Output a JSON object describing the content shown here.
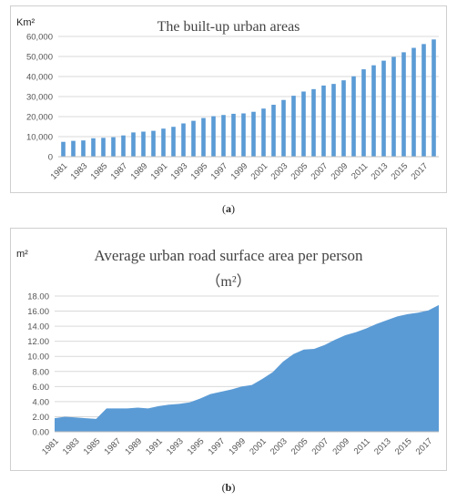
{
  "captions": {
    "a_open": "(",
    "a_letter": "a",
    "a_close": ")",
    "b_open": "(",
    "b_letter": "b",
    "b_close": ")"
  },
  "chart_data": [
    {
      "type": "bar",
      "title": "The built-up urban areas",
      "unit": "Km²",
      "xlabel": "",
      "ylabel": "",
      "ylim": [
        0,
        60000
      ],
      "y_ticks": [
        "0",
        "10,000",
        "20,000",
        "30,000",
        "40,000",
        "50,000",
        "60,000"
      ],
      "grid": true,
      "color": "#5b9bd5",
      "categories": [
        "1981",
        "1982",
        "1983",
        "1984",
        "1985",
        "1986",
        "1987",
        "1988",
        "1989",
        "1990",
        "1991",
        "1992",
        "1993",
        "1994",
        "1995",
        "1996",
        "1997",
        "1998",
        "1999",
        "2000",
        "2001",
        "2002",
        "2003",
        "2004",
        "2005",
        "2006",
        "2007",
        "2008",
        "2009",
        "2010",
        "2011",
        "2012",
        "2013",
        "2014",
        "2015",
        "2016",
        "2017",
        "2018"
      ],
      "x_tick_labels": [
        "1981",
        "1983",
        "1985",
        "1987",
        "1989",
        "1991",
        "1993",
        "1995",
        "1997",
        "1999",
        "2001",
        "2003",
        "2005",
        "2007",
        "2009",
        "2011",
        "2013",
        "2015",
        "2017"
      ],
      "values": [
        7400,
        7900,
        8100,
        9200,
        9400,
        9700,
        10600,
        12100,
        12500,
        12900,
        14000,
        14900,
        16600,
        17900,
        19300,
        20200,
        20800,
        21400,
        21600,
        22400,
        24000,
        25900,
        28300,
        30400,
        32500,
        33700,
        35500,
        36300,
        38100,
        40100,
        43600,
        45600,
        47900,
        49800,
        52100,
        54300,
        56200,
        58500
      ]
    },
    {
      "type": "area",
      "title": "Average urban road surface area per person",
      "subtitle": "（m²）",
      "unit": "m²",
      "xlabel": "",
      "ylabel": "",
      "ylim": [
        0,
        18
      ],
      "y_ticks": [
        "0.00",
        "2.00",
        "4.00",
        "6.00",
        "8.00",
        "10.00",
        "12.00",
        "14.00",
        "16.00",
        "18.00"
      ],
      "grid": true,
      "color": "#5b9bd5",
      "categories": [
        "1981",
        "1982",
        "1983",
        "1984",
        "1985",
        "1986",
        "1987",
        "1988",
        "1989",
        "1990",
        "1991",
        "1992",
        "1993",
        "1994",
        "1995",
        "1996",
        "1997",
        "1998",
        "1999",
        "2000",
        "2001",
        "2002",
        "2003",
        "2004",
        "2005",
        "2006",
        "2007",
        "2008",
        "2009",
        "2010",
        "2011",
        "2012",
        "2013",
        "2014",
        "2015",
        "2016",
        "2017",
        "2018"
      ],
      "x_tick_labels": [
        "1981",
        "1983",
        "1985",
        "1987",
        "1989",
        "1991",
        "1993",
        "1995",
        "1997",
        "1999",
        "2001",
        "2003",
        "2005",
        "2007",
        "2009",
        "2011",
        "2013",
        "2015",
        "2017"
      ],
      "values": [
        1.8,
        2.0,
        1.9,
        1.8,
        1.7,
        3.1,
        3.1,
        3.1,
        3.2,
        3.1,
        3.4,
        3.6,
        3.7,
        3.9,
        4.4,
        5.0,
        5.3,
        5.6,
        6.0,
        6.2,
        7.0,
        7.9,
        9.3,
        10.3,
        10.9,
        11.0,
        11.5,
        12.2,
        12.8,
        13.2,
        13.7,
        14.3,
        14.8,
        15.3,
        15.6,
        15.8,
        16.1,
        16.8
      ]
    }
  ]
}
